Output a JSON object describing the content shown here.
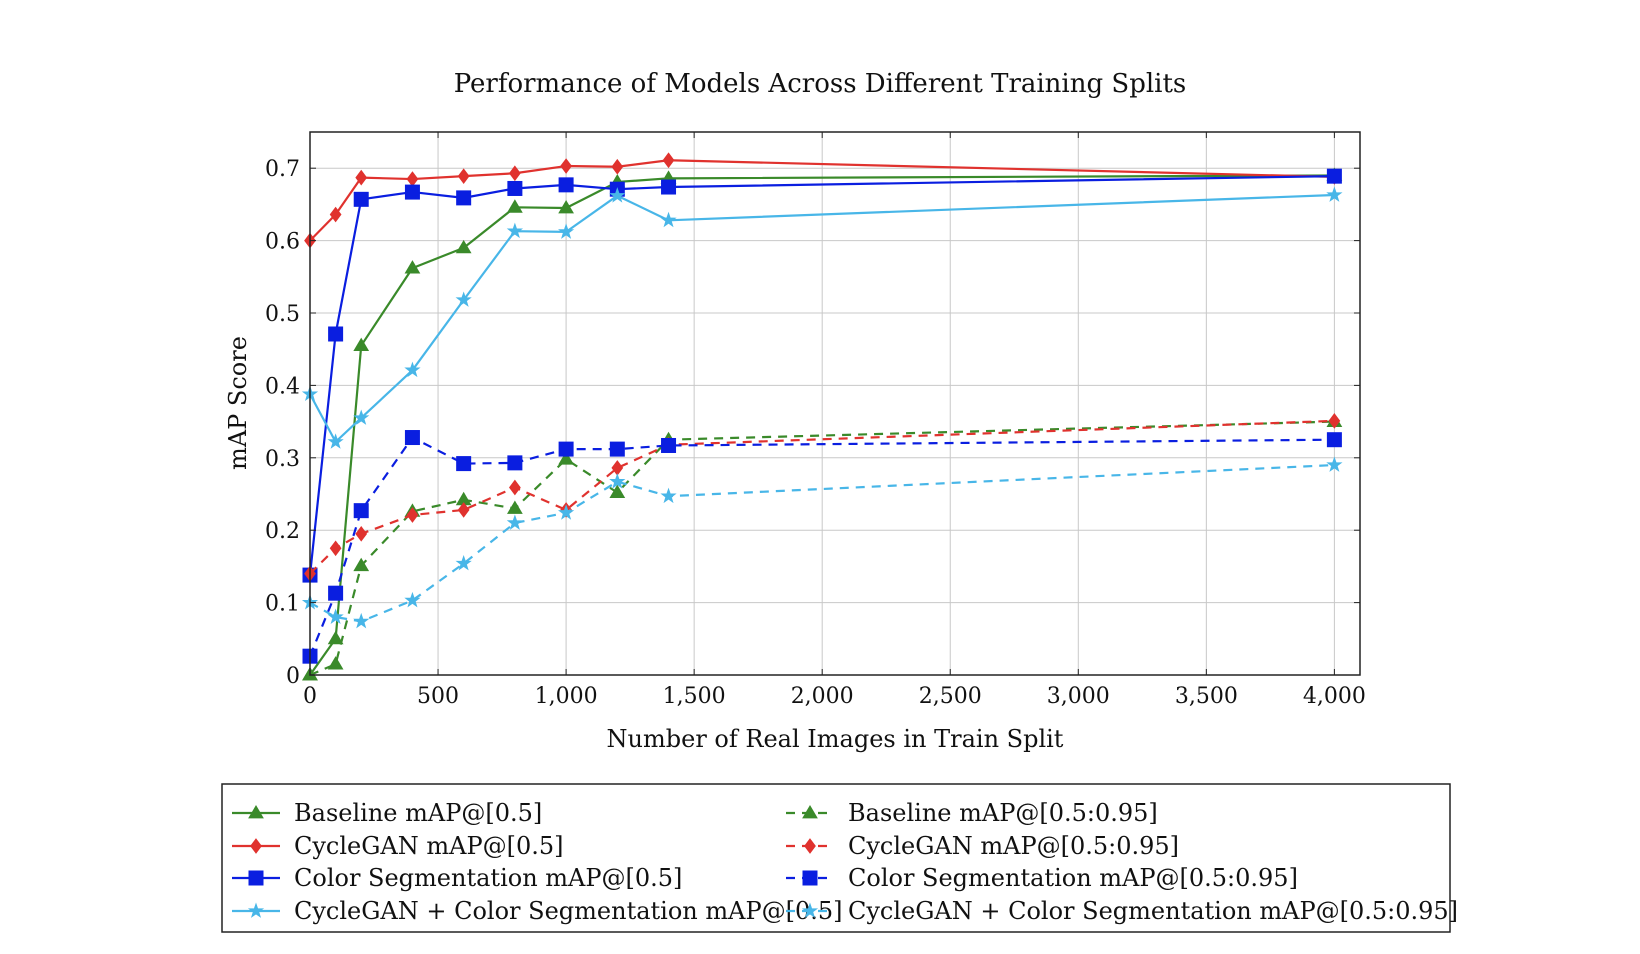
{
  "chart_data": {
    "type": "line",
    "title": "Performance of Models Across Different Training Splits",
    "xlabel": "Number of Real Images in Train Split",
    "ylabel": "mAP Score",
    "xlim": [
      0,
      4100
    ],
    "ylim": [
      0,
      0.75
    ],
    "xticks": [
      0,
      500,
      1000,
      1500,
      2000,
      2500,
      3000,
      3500,
      4000
    ],
    "xtick_labels": [
      "0",
      "500",
      "1,000",
      "1,500",
      "2,000",
      "2,500",
      "3,000",
      "3,500",
      "4,000"
    ],
    "yticks": [
      0,
      0.1,
      0.2,
      0.3,
      0.4,
      0.5,
      0.6,
      0.7
    ],
    "ytick_labels": [
      "0",
      "0.1",
      "0.2",
      "0.3",
      "0.4",
      "0.5",
      "0.6",
      "0.7"
    ],
    "grid": true,
    "legend_placement": "bottom, two columns",
    "x": [
      0,
      100,
      200,
      400,
      600,
      800,
      1000,
      1200,
      1400,
      4000
    ],
    "series": [
      {
        "name": "Baseline mAP@[0.5]",
        "color": "#3a8a2a",
        "marker": "triangle",
        "dashed": false,
        "values": [
          0.0,
          0.05,
          0.455,
          0.562,
          0.59,
          0.646,
          0.645,
          0.681,
          0.686,
          0.69
        ]
      },
      {
        "name": "CycleGAN mAP@[0.5]",
        "color": "#e0322e",
        "marker": "diamond",
        "dashed": false,
        "values": [
          0.6,
          0.636,
          0.687,
          0.685,
          0.689,
          0.693,
          0.703,
          0.702,
          0.711,
          0.688
        ]
      },
      {
        "name": "Color Segmentation mAP@[0.5]",
        "color": "#0a1ee0",
        "marker": "square",
        "dashed": false,
        "values": [
          0.138,
          0.471,
          0.657,
          0.667,
          0.659,
          0.672,
          0.677,
          0.671,
          0.674,
          0.689
        ]
      },
      {
        "name": "CycleGAN + Color Segmentation mAP@[0.5]",
        "color": "#48b6e8",
        "marker": "star",
        "dashed": false,
        "values": [
          0.388,
          0.322,
          0.355,
          0.421,
          0.518,
          0.613,
          0.612,
          0.662,
          0.628,
          0.663
        ]
      },
      {
        "name": "Baseline mAP@[0.5:0.95]",
        "color": "#3a8a2a",
        "marker": "triangle",
        "dashed": true,
        "values": [
          0.0,
          0.015,
          0.151,
          0.226,
          0.242,
          0.23,
          0.298,
          0.252,
          0.325,
          0.35
        ]
      },
      {
        "name": "CycleGAN mAP@[0.5:0.95]",
        "color": "#e0322e",
        "marker": "diamond",
        "dashed": true,
        "values": [
          0.14,
          0.175,
          0.195,
          0.221,
          0.228,
          0.259,
          0.228,
          0.286,
          0.318,
          0.351
        ]
      },
      {
        "name": "Color Segmentation mAP@[0.5:0.95]",
        "color": "#0a1ee0",
        "marker": "square",
        "dashed": true,
        "values": [
          0.026,
          0.113,
          0.227,
          0.328,
          0.292,
          0.293,
          0.312,
          0.312,
          0.317,
          0.325
        ]
      },
      {
        "name": "CycleGAN + Color Segmentation mAP@[0.5:0.95]",
        "color": "#48b6e8",
        "marker": "star",
        "dashed": true,
        "values": [
          0.1,
          0.08,
          0.074,
          0.103,
          0.154,
          0.21,
          0.224,
          0.267,
          0.247,
          0.29
        ]
      }
    ]
  }
}
